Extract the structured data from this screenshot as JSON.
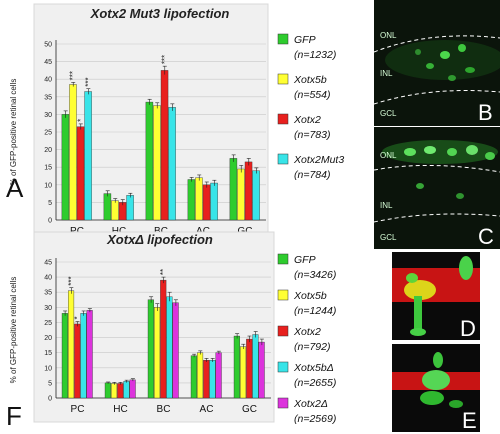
{
  "colors": {
    "GFP": "#2ecc2e",
    "Xotx5b": "#ffff33",
    "Xotx2": "#e8201e",
    "Xotx2Mut3": "#38e4e8",
    "Xotx5bDelta": "#38e4e8",
    "Xotx2Delta": "#dc33dc"
  },
  "panels": {
    "A": "A",
    "F": "F",
    "B": "B",
    "C": "C",
    "D": "D",
    "E": "E"
  },
  "retina_labels": {
    "B": [
      "ONL",
      "INL",
      "GCL"
    ],
    "C": [
      "ONL",
      "INL",
      "GCL"
    ]
  },
  "chart_data": [
    {
      "type": "bar",
      "title": "Xotx2 Mut3 lipofection",
      "ylabel": "% of GFP-positive retinal cells",
      "ylim": [
        0,
        50
      ],
      "yticks": [
        0,
        5,
        10,
        15,
        20,
        25,
        30,
        35,
        40,
        45,
        50
      ],
      "categories": [
        "PC",
        "HC",
        "BC",
        "AC",
        "GC"
      ],
      "series": [
        {
          "name": "GFP",
          "n": "(n=1232)",
          "color": "#2ecc2e",
          "values": [
            30,
            7.5,
            33.5,
            11.5,
            17.5
          ],
          "errors": [
            1,
            0.8,
            0.8,
            0.6,
            1
          ]
        },
        {
          "name": "Xotx5b",
          "n": "(n=554)",
          "color": "#ffff33",
          "values": [
            38.5,
            5.5,
            32.5,
            12,
            14.5
          ],
          "errors": [
            0.6,
            0.6,
            0.8,
            0.8,
            1
          ]
        },
        {
          "name": "Xotx2",
          "n": "(n=783)",
          "color": "#e8201e",
          "values": [
            26.5,
            5,
            42.5,
            10,
            16.5
          ],
          "errors": [
            0.8,
            0.8,
            1.2,
            0.8,
            1
          ]
        },
        {
          "name": "Xotx2Mut3",
          "n": "(n=784)",
          "color": "#38e4e8",
          "values": [
            36.5,
            7,
            32,
            10.5,
            14
          ],
          "errors": [
            0.8,
            0.6,
            1,
            0.8,
            0.8
          ]
        }
      ],
      "stars": [
        {
          "category": "PC",
          "series": "Xotx5b",
          "text": "***"
        },
        {
          "category": "PC",
          "series": "Xotx2",
          "text": "*"
        },
        {
          "category": "PC",
          "series": "Xotx2Mut3",
          "text": "***"
        },
        {
          "category": "BC",
          "series": "Xotx2",
          "text": "***"
        }
      ]
    },
    {
      "type": "bar",
      "title": "XotxΔ lipofection",
      "ylabel": "% of GFP-positive retinal cells",
      "ylim": [
        0,
        45
      ],
      "yticks": [
        0,
        5,
        10,
        15,
        20,
        25,
        30,
        35,
        40,
        45
      ],
      "categories": [
        "PC",
        "HC",
        "BC",
        "AC",
        "GC"
      ],
      "series": [
        {
          "name": "GFP",
          "n": "(n=3426)",
          "color": "#2ecc2e",
          "values": [
            28,
            5,
            32.5,
            14,
            20.5
          ],
          "errors": [
            0.8,
            0.3,
            1,
            0.5,
            0.8
          ]
        },
        {
          "name": "Xotx5b",
          "n": "(n=1244)",
          "color": "#ffff33",
          "values": [
            35.5,
            4.8,
            30,
            15,
            17
          ],
          "errors": [
            1,
            0.4,
            1.2,
            0.6,
            0.8
          ]
        },
        {
          "name": "Xotx2",
          "n": "(n=792)",
          "color": "#e8201e",
          "values": [
            24.5,
            4.8,
            39,
            12.5,
            19.5
          ],
          "errors": [
            0.8,
            0.4,
            1,
            0.6,
            1
          ]
        },
        {
          "name": "Xotx5bΔ",
          "n": "(n=2655)",
          "color": "#38e4e8",
          "values": [
            28,
            5.5,
            33.5,
            12.5,
            21
          ],
          "errors": [
            0.8,
            0.4,
            1.5,
            0.6,
            1
          ]
        },
        {
          "name": "Xotx2Δ",
          "n": "(n=2569)",
          "color": "#dc33dc",
          "values": [
            29,
            6,
            31.5,
            15,
            18.5
          ],
          "errors": [
            0.6,
            0.4,
            1,
            0.5,
            1
          ]
        }
      ],
      "stars": [
        {
          "category": "PC",
          "series": "Xotx5b",
          "text": "***"
        },
        {
          "category": "PC",
          "series": "Xotx2",
          "text": "*"
        },
        {
          "category": "BC",
          "series": "Xotx2",
          "text": "**"
        }
      ]
    }
  ]
}
